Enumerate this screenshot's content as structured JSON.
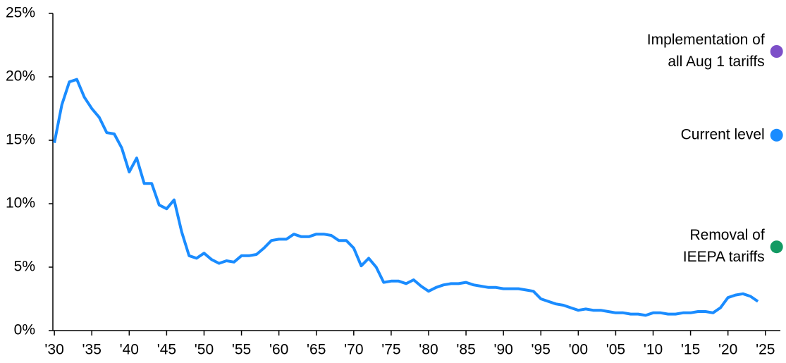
{
  "chart_data": {
    "type": "line",
    "x": [
      1930,
      1931,
      1932,
      1933,
      1934,
      1935,
      1936,
      1937,
      1938,
      1939,
      1940,
      1941,
      1942,
      1943,
      1944,
      1945,
      1946,
      1947,
      1948,
      1949,
      1950,
      1951,
      1952,
      1953,
      1954,
      1955,
      1956,
      1957,
      1958,
      1959,
      1960,
      1961,
      1962,
      1963,
      1964,
      1965,
      1966,
      1967,
      1968,
      1969,
      1970,
      1971,
      1972,
      1973,
      1974,
      1975,
      1976,
      1977,
      1978,
      1979,
      1980,
      1981,
      1982,
      1983,
      1984,
      1985,
      1986,
      1987,
      1988,
      1989,
      1990,
      1991,
      1992,
      1993,
      1994,
      1995,
      1996,
      1997,
      1998,
      1999,
      2000,
      2001,
      2002,
      2003,
      2004,
      2005,
      2006,
      2007,
      2008,
      2009,
      2010,
      2011,
      2012,
      2013,
      2014,
      2015,
      2016,
      2017,
      2018,
      2019,
      2020,
      2021,
      2022,
      2023,
      2024
    ],
    "values": [
      14.8,
      17.8,
      19.6,
      19.8,
      18.4,
      17.5,
      16.8,
      15.6,
      15.5,
      14.4,
      12.5,
      13.6,
      11.6,
      11.6,
      9.9,
      9.6,
      10.3,
      7.8,
      5.9,
      5.7,
      6.1,
      5.6,
      5.3,
      5.5,
      5.4,
      5.9,
      5.9,
      6.0,
      6.5,
      7.1,
      7.2,
      7.2,
      7.6,
      7.4,
      7.4,
      7.6,
      7.6,
      7.5,
      7.1,
      7.1,
      6.5,
      5.1,
      5.7,
      5.0,
      3.8,
      3.9,
      3.9,
      3.7,
      4.0,
      3.5,
      3.1,
      3.4,
      3.6,
      3.7,
      3.7,
      3.8,
      3.6,
      3.5,
      3.4,
      3.4,
      3.3,
      3.3,
      3.3,
      3.2,
      3.1,
      2.5,
      2.3,
      2.1,
      2.0,
      1.8,
      1.6,
      1.7,
      1.6,
      1.6,
      1.5,
      1.4,
      1.4,
      1.3,
      1.3,
      1.2,
      1.4,
      1.4,
      1.3,
      1.3,
      1.4,
      1.4,
      1.5,
      1.5,
      1.4,
      1.8,
      2.6,
      2.8,
      2.9,
      2.7,
      2.3
    ],
    "color": "#1a8cff",
    "points": [
      {
        "label": [
          "Implementation of",
          "all Aug 1 tariffs"
        ],
        "x": 2026.5,
        "value": 22.0,
        "color": "#7d4fc8"
      },
      {
        "label": [
          "Current level"
        ],
        "x": 2026.5,
        "value": 15.4,
        "color": "#1a8cff"
      },
      {
        "label": [
          "Removal of",
          "IEEPA tariffs"
        ],
        "x": 2026.5,
        "value": 6.6,
        "color": "#139a63"
      }
    ],
    "xlim": [
      1929.8,
      2027
    ],
    "ylim": [
      0,
      25
    ],
    "xticks": [
      {
        "value": 1930,
        "label": "'30"
      },
      {
        "value": 1935,
        "label": "'35"
      },
      {
        "value": 1940,
        "label": "'40"
      },
      {
        "value": 1945,
        "label": "'45"
      },
      {
        "value": 1950,
        "label": "'50"
      },
      {
        "value": 1955,
        "label": "'55"
      },
      {
        "value": 1960,
        "label": "'60"
      },
      {
        "value": 1965,
        "label": "'65"
      },
      {
        "value": 1970,
        "label": "'70"
      },
      {
        "value": 1975,
        "label": "'75"
      },
      {
        "value": 1980,
        "label": "'80"
      },
      {
        "value": 1985,
        "label": "'85"
      },
      {
        "value": 1990,
        "label": "'90"
      },
      {
        "value": 1995,
        "label": "'95"
      },
      {
        "value": 2000,
        "label": "'00"
      },
      {
        "value": 2005,
        "label": "'05"
      },
      {
        "value": 2010,
        "label": "'10"
      },
      {
        "value": 2015,
        "label": "'15"
      },
      {
        "value": 2020,
        "label": "'20"
      },
      {
        "value": 2025,
        "label": "'25"
      }
    ],
    "yticks": [
      {
        "value": 0,
        "label": "0%"
      },
      {
        "value": 5,
        "label": "5%"
      },
      {
        "value": 10,
        "label": "10%"
      },
      {
        "value": 15,
        "label": "15%"
      },
      {
        "value": 20,
        "label": "20%"
      },
      {
        "value": 25,
        "label": "25%"
      }
    ]
  }
}
